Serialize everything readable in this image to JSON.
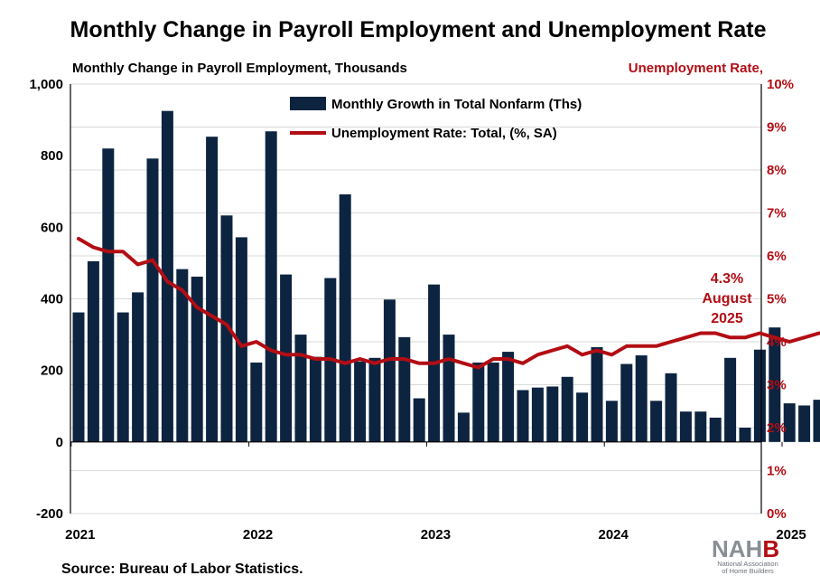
{
  "chart_data": {
    "type": "bar",
    "title": "Monthly Change in Payroll Employment and Unemployment Rate",
    "left_axis_label": "Monthly Change in Payroll Employment, Thousands",
    "right_axis_label": "Unemployment Rate,",
    "left_axis": {
      "min": -200,
      "max": 1000,
      "ticks": [
        "1,000",
        "800",
        "600",
        "400",
        "200",
        "0",
        "-200"
      ]
    },
    "right_axis": {
      "min": 0,
      "max": 10,
      "ticks": [
        "10%",
        "9%",
        "8%",
        "7%",
        "6%",
        "5%",
        "4%",
        "3%",
        "2%",
        "1%",
        "0%"
      ]
    },
    "x_tick_labels": [
      "2021",
      "2022",
      "2023",
      "2024",
      "2025"
    ],
    "categories": [
      "2021-01",
      "2021-02",
      "2021-03",
      "2021-04",
      "2021-05",
      "2021-06",
      "2021-07",
      "2021-08",
      "2021-09",
      "2021-10",
      "2021-11",
      "2021-12",
      "2022-01",
      "2022-02",
      "2022-03",
      "2022-04",
      "2022-05",
      "2022-06",
      "2022-07",
      "2022-08",
      "2022-09",
      "2022-10",
      "2022-11",
      "2022-12",
      "2023-01",
      "2023-02",
      "2023-03",
      "2023-04",
      "2023-05",
      "2023-06",
      "2023-07",
      "2023-08",
      "2023-09",
      "2023-10",
      "2023-11",
      "2023-12",
      "2024-01",
      "2024-02",
      "2024-03",
      "2024-04",
      "2024-05",
      "2024-06",
      "2024-07",
      "2024-08",
      "2024-09",
      "2024-10",
      "2024-11",
      "2024-12",
      "2025-01",
      "2025-02",
      "2025-03",
      "2025-04",
      "2025-05",
      "2025-06",
      "2025-07",
      "2025-08"
    ],
    "series": [
      {
        "name": "Monthly Growth in Total Nonfarm (Ths)",
        "type": "bar",
        "axis": "left",
        "color": "#0c2440",
        "values": [
          362,
          505,
          820,
          362,
          418,
          792,
          925,
          483,
          462,
          853,
          633,
          572,
          222,
          868,
          468,
          300,
          238,
          458,
          692,
          225,
          235,
          398,
          293,
          122,
          440,
          300,
          82,
          222,
          222,
          252,
          145,
          152,
          155,
          182,
          138,
          265,
          115,
          218,
          242,
          115,
          192,
          85,
          85,
          68,
          235,
          40,
          258,
          320,
          108,
          102,
          118,
          155,
          15,
          -12,
          75,
          20
        ]
      },
      {
        "name": "Unemployment Rate: Total, (%, SA)",
        "type": "line",
        "axis": "right",
        "color": "#b30d14",
        "values": [
          6.4,
          6.2,
          6.1,
          6.1,
          5.8,
          5.9,
          5.4,
          5.2,
          4.8,
          4.6,
          4.4,
          3.9,
          4.0,
          3.8,
          3.7,
          3.7,
          3.6,
          3.6,
          3.5,
          3.6,
          3.5,
          3.6,
          3.6,
          3.5,
          3.5,
          3.6,
          3.5,
          3.4,
          3.6,
          3.6,
          3.5,
          3.7,
          3.8,
          3.9,
          3.7,
          3.8,
          3.7,
          3.9,
          3.9,
          3.9,
          4.0,
          4.1,
          4.2,
          4.2,
          4.1,
          4.1,
          4.2,
          4.1,
          4.0,
          4.1,
          4.2,
          4.2,
          4.2,
          4.1,
          4.2,
          4.3
        ]
      }
    ],
    "annotation": {
      "lines": [
        "4.3%",
        "August",
        "2025"
      ]
    },
    "grid": true,
    "legend_position": "top-center"
  },
  "source": "Source: Bureau of Labor Statistics.",
  "logo": {
    "word_gray": "NAH",
    "word_red": "B",
    "line1": "National Association",
    "line2": "of Home Builders"
  },
  "colors": {
    "bar": "#0c2440",
    "line": "#b30d14",
    "right_axis_text": "#b30d14",
    "grid": "#d9d9d9",
    "negative_bar": "#b30d14"
  }
}
